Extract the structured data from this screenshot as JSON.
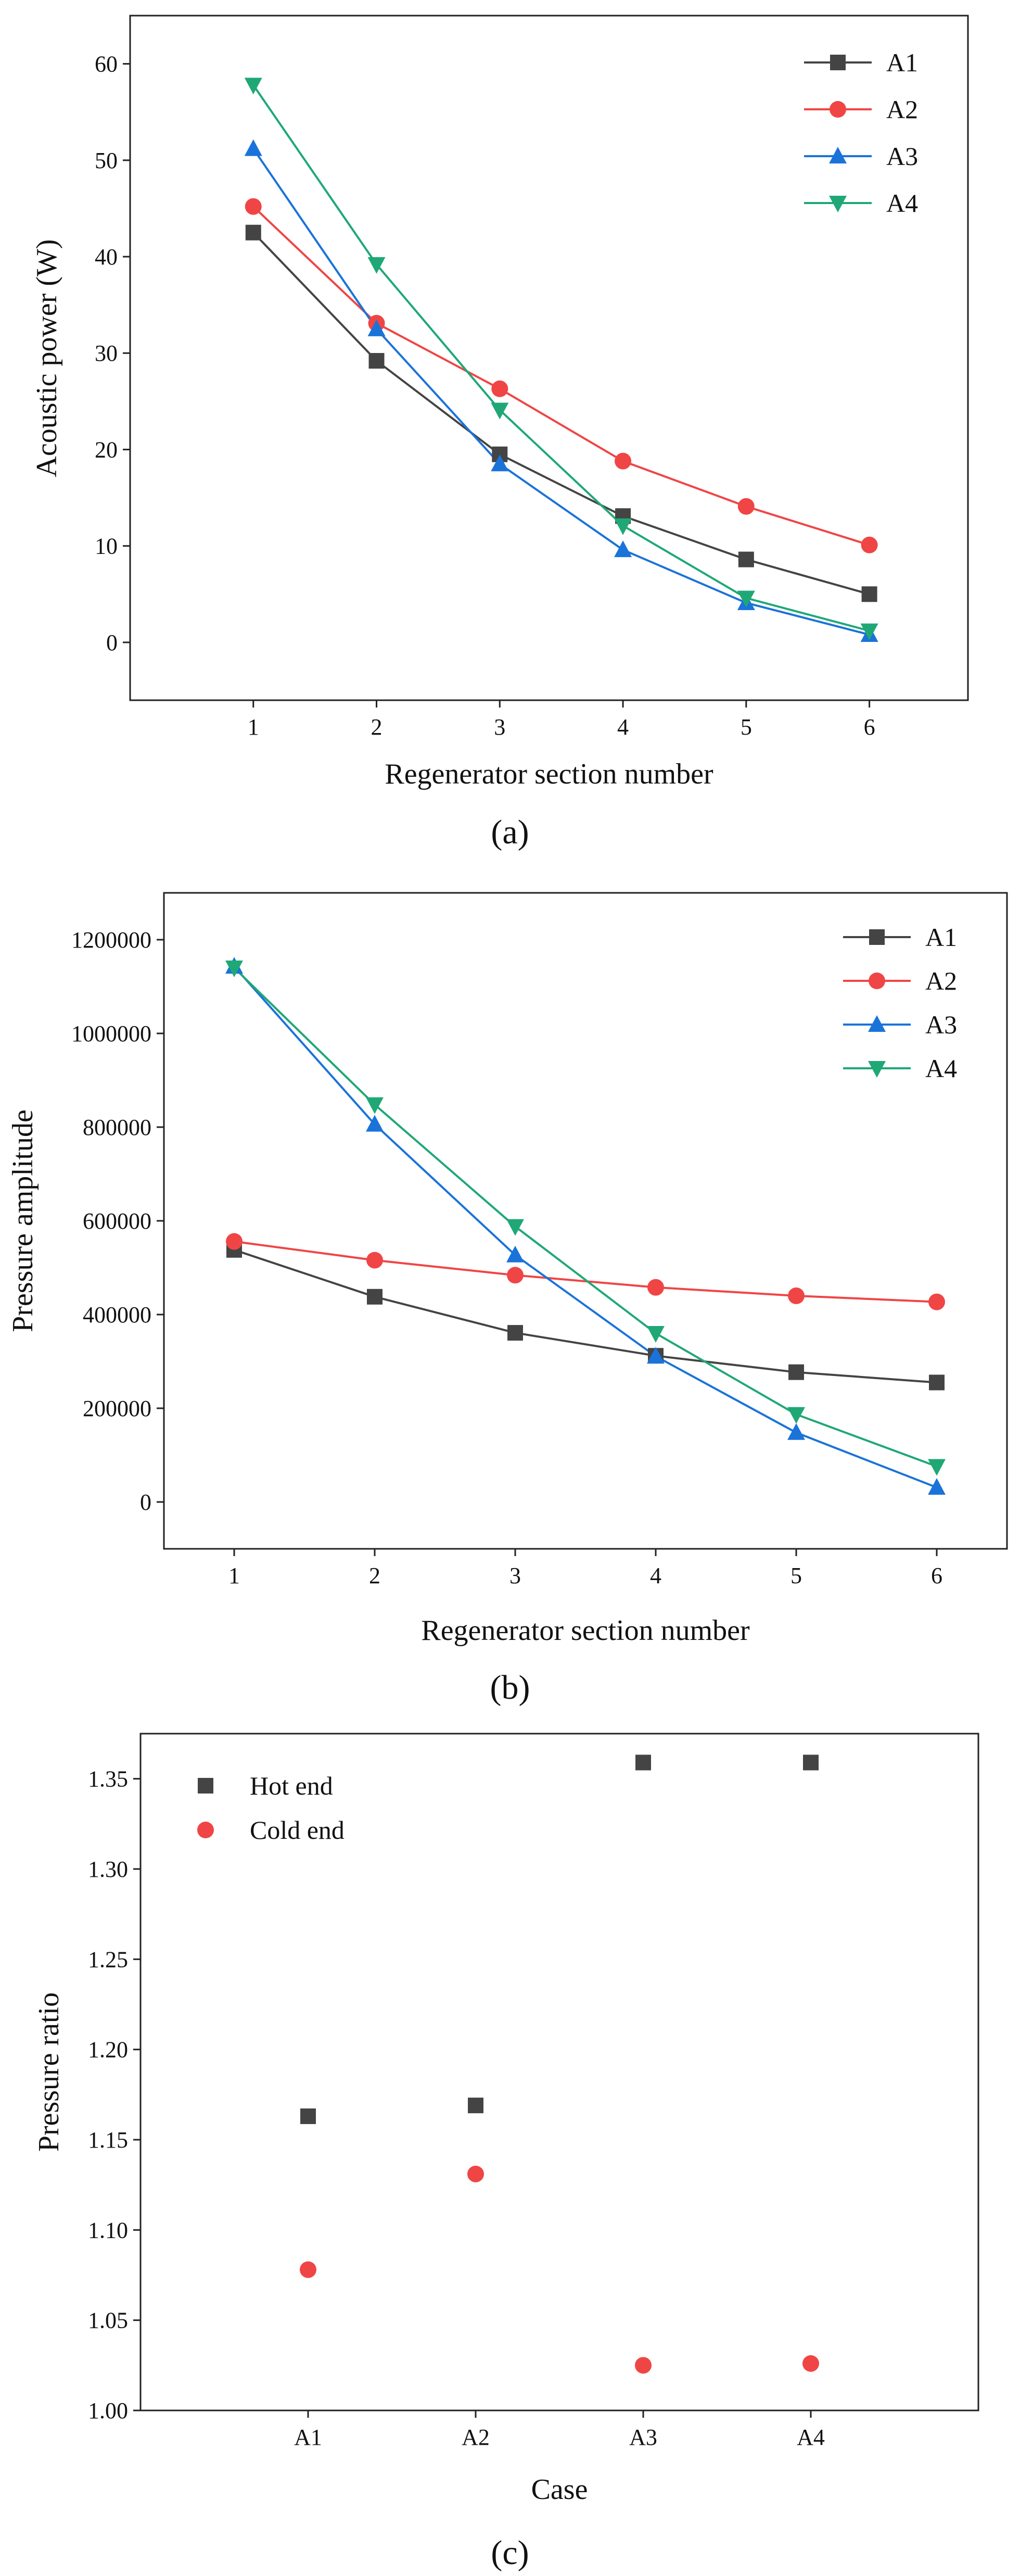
{
  "figure": {
    "colors": {
      "A1": "#444444",
      "A2": "#f04545",
      "A3": "#1a73d9",
      "A4": "#1fa876",
      "hot": "#444444",
      "cold": "#f04545"
    }
  },
  "chart_data": [
    {
      "type": "line",
      "panel": "a",
      "title": "",
      "xlabel": "Regenerator section number",
      "ylabel": "Acoustic power (W)",
      "x": [
        1,
        2,
        3,
        4,
        5,
        6
      ],
      "xticks": [
        1,
        2,
        3,
        4,
        5,
        6
      ],
      "xlim": [
        0.0,
        6.8
      ],
      "yticks": [
        0,
        10,
        20,
        30,
        40,
        50,
        60
      ],
      "ylim": [
        -6,
        65
      ],
      "legend": "top-right",
      "series": [
        {
          "name": "A1",
          "marker": "square",
          "color": "#444444",
          "values": [
            42.5,
            29.2,
            19.5,
            13.1,
            8.6,
            5.0
          ]
        },
        {
          "name": "A2",
          "marker": "circle",
          "color": "#f04545",
          "values": [
            45.2,
            33.1,
            26.3,
            18.8,
            14.1,
            10.1
          ]
        },
        {
          "name": "A3",
          "marker": "triangle-up",
          "color": "#1a73d9",
          "values": [
            51.2,
            32.5,
            18.5,
            9.6,
            4.1,
            0.8
          ]
        },
        {
          "name": "A4",
          "marker": "triangle-down",
          "color": "#1fa876",
          "values": [
            57.8,
            39.2,
            24.1,
            12.1,
            4.6,
            1.2
          ]
        }
      ]
    },
    {
      "type": "line",
      "panel": "b",
      "title": "",
      "xlabel": "Regenerator section number",
      "ylabel": "Pressure amplitude",
      "x": [
        1,
        2,
        3,
        4,
        5,
        6
      ],
      "xticks": [
        1,
        2,
        3,
        4,
        5,
        6
      ],
      "xlim": [
        0.5,
        6.5
      ],
      "yticks": [
        0,
        200000,
        400000,
        600000,
        800000,
        1000000,
        1200000
      ],
      "ylim": [
        -100000,
        1300000
      ],
      "legend": "top-right",
      "series": [
        {
          "name": "A1",
          "marker": "square",
          "color": "#444444",
          "values": [
            538000,
            438000,
            361000,
            312000,
            277000,
            255000
          ]
        },
        {
          "name": "A2",
          "marker": "circle",
          "color": "#f04545",
          "values": [
            556000,
            516000,
            484000,
            458000,
            440000,
            427000
          ]
        },
        {
          "name": "A3",
          "marker": "triangle-up",
          "color": "#1a73d9",
          "values": [
            1143000,
            806000,
            527000,
            311000,
            148000,
            31000
          ]
        },
        {
          "name": "A4",
          "marker": "triangle-down",
          "color": "#1fa876",
          "values": [
            1140000,
            848000,
            588000,
            360000,
            187000,
            76000
          ]
        }
      ]
    },
    {
      "type": "scatter",
      "panel": "c",
      "title": "",
      "xlabel": "Case",
      "ylabel": "Pressure ratio",
      "categories": [
        "A1",
        "A2",
        "A3",
        "A4"
      ],
      "xlim": [
        0.0,
        5.0
      ],
      "yticks": [
        "1.00",
        "1.05",
        "1.10",
        "1.15",
        "1.20",
        "1.25",
        "1.30",
        "1.35"
      ],
      "ylim": [
        1.0,
        1.375
      ],
      "legend": "top-left",
      "series": [
        {
          "name": "Hot end",
          "marker": "square",
          "color": "#444444",
          "values": [
            1.163,
            1.169,
            1.359,
            1.359
          ]
        },
        {
          "name": "Cold end",
          "marker": "circle",
          "color": "#f04545",
          "values": [
            1.078,
            1.131,
            1.025,
            1.026
          ]
        }
      ]
    }
  ],
  "labels": {
    "a": "(a)",
    "b": "(b)",
    "c": "(c)"
  }
}
